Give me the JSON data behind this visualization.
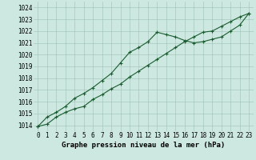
{
  "xlabel": "Graphe pression niveau de la mer (hPa)",
  "hours": [
    0,
    1,
    2,
    3,
    4,
    5,
    6,
    7,
    8,
    9,
    10,
    11,
    12,
    13,
    14,
    15,
    16,
    17,
    18,
    19,
    20,
    21,
    22,
    23
  ],
  "line1": [
    1013.9,
    1014.1,
    1014.7,
    1015.1,
    1015.4,
    1015.6,
    1016.2,
    1016.6,
    1017.1,
    1017.5,
    1018.1,
    1018.6,
    1019.1,
    1019.6,
    1020.1,
    1020.6,
    1021.1,
    1021.5,
    1021.9,
    1022.0,
    1022.4,
    1022.8,
    1023.2,
    1023.5
  ],
  "line2": [
    1013.9,
    1014.7,
    1015.1,
    1015.6,
    1016.3,
    1016.7,
    1017.2,
    1017.8,
    1018.4,
    1019.3,
    1020.2,
    1020.6,
    1021.1,
    1021.9,
    1021.7,
    1021.5,
    1021.2,
    1021.0,
    1021.1,
    1021.3,
    1021.5,
    1022.0,
    1022.5,
    1023.5
  ],
  "ylim": [
    1013.5,
    1024.5
  ],
  "yticks": [
    1014,
    1015,
    1016,
    1017,
    1018,
    1019,
    1020,
    1021,
    1022,
    1023,
    1024
  ],
  "bg_color": "#cde8e0",
  "grid_color": "#9dbfb5",
  "line_color": "#1a5c30",
  "line_width": 0.8,
  "marker": "+",
  "marker_size": 3.5,
  "marker_edge_width": 0.8,
  "tick_fontsize": 5.5,
  "label_fontsize": 6.5
}
